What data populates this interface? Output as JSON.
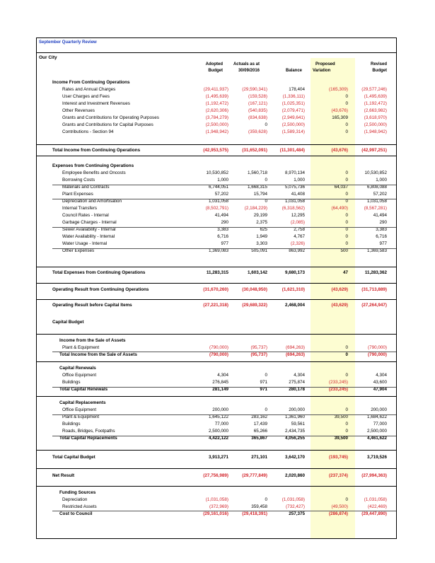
{
  "report": {
    "title": "September Quarterly Review",
    "entity": "Our City",
    "headers": {
      "adopted": [
        "Adopted",
        "Budget"
      ],
      "actuals": [
        "Actuals as at",
        "30/09/2016"
      ],
      "balance": "Balance",
      "proposed": [
        "Proposed",
        "Variation"
      ],
      "revised": [
        "Revised",
        "Budget"
      ]
    }
  },
  "rows": [
    {
      "label": "Income From Continuing Operations",
      "indent": 1,
      "type": "section"
    },
    {
      "label": "Rates and Annual Charges",
      "indent": 2,
      "values": [
        "(29,411,937)",
        "(29,590,341)",
        "178,404",
        "(165,309)",
        "(29,577,246)"
      ]
    },
    {
      "label": "User Charges and Fees",
      "indent": 2,
      "values": [
        "(1,495,639)",
        "(159,528)",
        "(1,336,111)",
        "0",
        "(1,495,639)"
      ]
    },
    {
      "label": "Interest and Investment Revenues",
      "indent": 2,
      "values": [
        "(1,192,472)",
        "(167,121)",
        "(1,025,351)",
        "0",
        "(1,192,472)"
      ]
    },
    {
      "label": "Other Revenues",
      "indent": 2,
      "values": [
        "(2,620,306)",
        "(540,835)",
        "(2,079,471)",
        "(43,676)",
        "(2,663,982)"
      ]
    },
    {
      "label": "Grants and Contributions for Operating Purposes",
      "indent": 2,
      "values": [
        "(3,784,279)",
        "(834,638)",
        "(2,949,641)",
        "165,309",
        "(3,618,970)"
      ]
    },
    {
      "label": "Grants and Contributions for Capital Purposes",
      "indent": 2,
      "values": [
        "(2,500,000)",
        "0",
        "(2,500,000)",
        "0",
        "(2,500,000)"
      ]
    },
    {
      "label": "Contributions - Section 94",
      "indent": 2,
      "values": [
        "(1,948,942)",
        "(359,628)",
        "(1,589,314)",
        "0",
        "(1,948,942)"
      ]
    },
    {
      "label": "Total Income from Continuing Operations",
      "indent": 1,
      "type": "total",
      "values": [
        "(42,953,575)",
        "(31,652,091)",
        "(11,301,484)",
        "(43,676)",
        "(42,997,251)"
      ]
    },
    {
      "label": "Expenses from Continuing Operations",
      "indent": 1,
      "type": "section"
    },
    {
      "label": "Employee Benefits and Oncosts",
      "indent": 2,
      "values": [
        "10,530,852",
        "1,560,718",
        "8,970,134",
        "0",
        "10,530,852"
      ]
    },
    {
      "label": "Borrowing Costs",
      "indent": 2,
      "values": [
        "1,000",
        "0",
        "1,000",
        "0",
        "1,000"
      ]
    },
    {
      "label": "Materials and Contracts",
      "indent": 2,
      "values": [
        "6,744,051",
        "1,668,315",
        "5,075,736",
        "64,037",
        "6,808,088"
      ]
    },
    {
      "label": "Plant Expenses",
      "indent": 2,
      "values": [
        "57,202",
        "15,794",
        "41,408",
        "0",
        "57,202"
      ]
    },
    {
      "label": "Depreciation and Amortisation",
      "indent": 2,
      "values": [
        "1,031,058",
        "0",
        "1,031,058",
        "0",
        "1,031,058"
      ]
    },
    {
      "label": "Internal Transfers",
      "indent": 2,
      "values": [
        "(8,502,791)",
        "(2,184,229)",
        "(6,318,562)",
        "(64,490)",
        "(8,567,281)"
      ]
    },
    {
      "label": "Council Rates - Internal",
      "indent": 2,
      "values": [
        "41,494",
        "29,199",
        "12,295",
        "0",
        "41,494"
      ]
    },
    {
      "label": "Garbage Charges - Internal",
      "indent": 2,
      "values": [
        "290",
        "2,375",
        "(2,085)",
        "0",
        "290"
      ]
    },
    {
      "label": "Sewer Availability - Internal",
      "indent": 2,
      "values": [
        "3,383",
        "625",
        "2,758",
        "0",
        "3,383"
      ]
    },
    {
      "label": "Water Availability - Internal",
      "indent": 2,
      "values": [
        "6,716",
        "1,949",
        "4,767",
        "0",
        "6,716"
      ]
    },
    {
      "label": "Water Usage - Internal",
      "indent": 2,
      "values": [
        "977",
        "3,303",
        "(2,326)",
        "0",
        "977"
      ]
    },
    {
      "label": "Other Expenses",
      "indent": 2,
      "values": [
        "1,369,083",
        "505,091",
        "863,992",
        "500",
        "1,369,583"
      ]
    },
    {
      "label": "Total Expenses from Continuing Operations",
      "indent": 1,
      "type": "total",
      "values": [
        "11,283,315",
        "1,603,142",
        "9,680,173",
        "47",
        "11,283,362"
      ]
    },
    {
      "label": "Operating Result from Continuing Operations",
      "indent": 1,
      "type": "total",
      "values": [
        "(31,670,260)",
        "(30,048,950)",
        "(1,621,310)",
        "(43,629)",
        "(31,713,889)"
      ]
    },
    {
      "label": "Operating Result before Capital Items",
      "indent": 1,
      "type": "total",
      "values": [
        "(27,221,318)",
        "(29,689,322)",
        "2,468,004",
        "(43,629)",
        "(27,264,947)"
      ]
    },
    {
      "label": "Capital Budget",
      "indent": 1,
      "type": "section"
    },
    {
      "label": "Income from the Sale of Assets",
      "indent": 2,
      "type": "section"
    },
    {
      "label": "Plant & Equipment",
      "indent": 2,
      "values": [
        "(790,000)",
        "(95,737)",
        "(694,263)",
        "0",
        "(790,000)"
      ]
    },
    {
      "label": "Total Income from the Sale of Assets",
      "indent": 2,
      "type": "total",
      "values": [
        "(790,000)",
        "(95,737)",
        "(694,263)",
        "0",
        "(790,000)"
      ]
    },
    {
      "label": "Capital Renewals",
      "indent": 2,
      "type": "section"
    },
    {
      "label": "Office Equipment",
      "indent": 2,
      "values": [
        "4,304",
        "0",
        "4,304",
        "0",
        "4,304"
      ]
    },
    {
      "label": "Buildings",
      "indent": 2,
      "values": [
        "276,845",
        "971",
        "275,874",
        "(233,245)",
        "43,600"
      ]
    },
    {
      "label": "Total Capital Renewals",
      "indent": 2,
      "type": "total",
      "values": [
        "281,149",
        "971",
        "280,178",
        "(233,245)",
        "47,904"
      ]
    },
    {
      "label": "Capital Replacements",
      "indent": 2,
      "type": "section"
    },
    {
      "label": "Office Equipment",
      "indent": 2,
      "values": [
        "200,000",
        "0",
        "200,000",
        "0",
        "200,000"
      ]
    },
    {
      "label": "Plant & Equipment",
      "indent": 2,
      "values": [
        "1,645,122",
        "283,162",
        "1,361,960",
        "39,500",
        "1,684,622"
      ]
    },
    {
      "label": "Buildings",
      "indent": 2,
      "values": [
        "77,000",
        "17,439",
        "59,561",
        "0",
        "77,000"
      ]
    },
    {
      "label": "Roads, Bridges, Footpaths",
      "indent": 2,
      "values": [
        "2,500,000",
        "65,266",
        "2,434,735",
        "0",
        "2,500,000"
      ]
    },
    {
      "label": "Total Capital Replacements",
      "indent": 2,
      "type": "total",
      "values": [
        "4,422,122",
        "365,867",
        "4,056,255",
        "39,500",
        "4,461,622"
      ]
    },
    {
      "label": "Total Capital Budget",
      "indent": 1,
      "type": "total",
      "values": [
        "3,913,271",
        "271,101",
        "3,642,170",
        "(193,745)",
        "3,719,526"
      ]
    },
    {
      "label": "Net Result",
      "indent": 1,
      "type": "total",
      "values": [
        "(27,756,989)",
        "(29,777,849)",
        "2,020,860",
        "(237,374)",
        "(27,994,363)"
      ]
    },
    {
      "label": "Funding Sources",
      "indent": 2,
      "type": "section"
    },
    {
      "label": "Depreciation",
      "indent": 2,
      "values": [
        "(1,031,058)",
        "0",
        "(1,031,058)",
        "0",
        "(1,031,058)"
      ]
    },
    {
      "label": "Restricted Assets",
      "indent": 2,
      "values": [
        "(372,969)",
        "359,458",
        "(732,427)",
        "(49,500)",
        "(422,469)"
      ]
    },
    {
      "label": "Cost to Council",
      "indent": 2,
      "type": "total",
      "values": [
        "(29,161,016)",
        "(29,418,391)",
        "257,375",
        "(286,874)",
        "(29,447,890)"
      ]
    }
  ]
}
